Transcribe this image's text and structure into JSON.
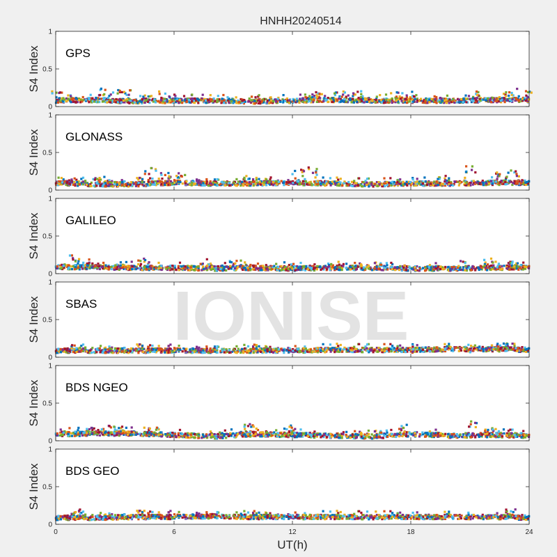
{
  "chart_data": {
    "type": "scatter",
    "title": "HNHH20240514",
    "xlabel": "UT(h)",
    "ylabel": "S4 Index",
    "xlim": [
      0,
      24
    ],
    "ylim": [
      0,
      1
    ],
    "x_ticks": [
      0,
      6,
      12,
      18,
      24
    ],
    "y_ticks": [
      0,
      0.5,
      1
    ],
    "y_tick_labels": [
      "0",
      "0.5",
      "1"
    ],
    "grid": false,
    "watermark": "IONISE",
    "series_colors": [
      "#0072BD",
      "#D95319",
      "#EDB120",
      "#7E2F8E",
      "#77AC30",
      "#4DBEEE",
      "#A2142F"
    ],
    "panels": [
      {
        "label": "GPS",
        "baseline": [
          [
            0,
            0.08
          ],
          [
            2,
            0.09
          ],
          [
            4,
            0.07
          ],
          [
            6,
            0.08
          ],
          [
            8,
            0.08
          ],
          [
            10,
            0.07
          ],
          [
            12,
            0.08
          ],
          [
            14,
            0.09
          ],
          [
            16,
            0.08
          ],
          [
            18,
            0.08
          ],
          [
            20,
            0.08
          ],
          [
            22,
            0.09
          ],
          [
            24,
            0.09
          ]
        ],
        "peaks": [
          [
            0.1,
            0.2
          ],
          [
            2.3,
            0.25
          ],
          [
            3.0,
            0.23
          ],
          [
            3.5,
            0.22
          ],
          [
            5.5,
            0.2
          ],
          [
            13.1,
            0.2
          ],
          [
            14.4,
            0.22
          ],
          [
            15.2,
            0.21
          ],
          [
            17.3,
            0.2
          ],
          [
            18.2,
            0.2
          ],
          [
            21.4,
            0.2
          ],
          [
            23.1,
            0.24
          ],
          [
            24.0,
            0.22
          ]
        ]
      },
      {
        "label": "GLONASS",
        "baseline": [
          [
            0,
            0.1
          ],
          [
            2,
            0.08
          ],
          [
            4,
            0.08
          ],
          [
            6,
            0.1
          ],
          [
            8,
            0.09
          ],
          [
            10,
            0.09
          ],
          [
            12,
            0.1
          ],
          [
            14,
            0.09
          ],
          [
            16,
            0.08
          ],
          [
            18,
            0.09
          ],
          [
            20,
            0.09
          ],
          [
            22,
            0.1
          ],
          [
            24,
            0.1
          ]
        ],
        "peaks": [
          [
            0.3,
            0.2
          ],
          [
            2.2,
            0.18
          ],
          [
            4.8,
            0.3
          ],
          [
            5.5,
            0.25
          ],
          [
            6.4,
            0.25
          ],
          [
            9.7,
            0.2
          ],
          [
            12.3,
            0.28
          ],
          [
            13.0,
            0.3
          ],
          [
            19.5,
            0.2
          ],
          [
            21.1,
            0.32
          ],
          [
            22.3,
            0.25
          ],
          [
            23.2,
            0.27
          ]
        ]
      },
      {
        "label": "GALILEO",
        "baseline": [
          [
            0,
            0.09
          ],
          [
            2,
            0.09
          ],
          [
            4,
            0.08
          ],
          [
            6,
            0.08
          ],
          [
            8,
            0.07
          ],
          [
            10,
            0.08
          ],
          [
            12,
            0.07
          ],
          [
            14,
            0.08
          ],
          [
            16,
            0.08
          ],
          [
            18,
            0.07
          ],
          [
            20,
            0.07
          ],
          [
            22,
            0.08
          ],
          [
            24,
            0.09
          ]
        ],
        "peaks": [
          [
            1.0,
            0.25
          ],
          [
            1.6,
            0.2
          ],
          [
            4.4,
            0.21
          ],
          [
            7.6,
            0.2
          ],
          [
            9.1,
            0.19
          ],
          [
            14.1,
            0.19
          ],
          [
            20.5,
            0.17
          ],
          [
            22.0,
            0.2
          ],
          [
            23.3,
            0.15
          ]
        ]
      },
      {
        "label": "SBAS",
        "baseline": [
          [
            0,
            0.09
          ],
          [
            2,
            0.09
          ],
          [
            4,
            0.09
          ],
          [
            6,
            0.09
          ],
          [
            8,
            0.09
          ],
          [
            10,
            0.09
          ],
          [
            12,
            0.09
          ],
          [
            14,
            0.1
          ],
          [
            16,
            0.1
          ],
          [
            18,
            0.1
          ],
          [
            20,
            0.11
          ],
          [
            22,
            0.11
          ],
          [
            24,
            0.1
          ]
        ],
        "peaks": [
          [
            1.0,
            0.16
          ],
          [
            18.2,
            0.16
          ],
          [
            21.3,
            0.16
          ],
          [
            22.3,
            0.18
          ],
          [
            23.1,
            0.19
          ]
        ]
      },
      {
        "label": "BDS NGEO",
        "baseline": [
          [
            0,
            0.09
          ],
          [
            2,
            0.1
          ],
          [
            4,
            0.1
          ],
          [
            6,
            0.08
          ],
          [
            8,
            0.06
          ],
          [
            10,
            0.09
          ],
          [
            12,
            0.08
          ],
          [
            14,
            0.07
          ],
          [
            16,
            0.06
          ],
          [
            18,
            0.09
          ],
          [
            20,
            0.07
          ],
          [
            22,
            0.08
          ],
          [
            24,
            0.07
          ]
        ],
        "peaks": [
          [
            1.8,
            0.2
          ],
          [
            2.7,
            0.2
          ],
          [
            3.2,
            0.2
          ],
          [
            4.9,
            0.18
          ],
          [
            9.8,
            0.22
          ],
          [
            12.0,
            0.21
          ],
          [
            17.6,
            0.22
          ],
          [
            21.1,
            0.28
          ],
          [
            21.9,
            0.17
          ]
        ]
      },
      {
        "label": "BDS GEO",
        "baseline": [
          [
            0,
            0.09
          ],
          [
            2,
            0.09
          ],
          [
            4,
            0.1
          ],
          [
            6,
            0.1
          ],
          [
            8,
            0.11
          ],
          [
            10,
            0.1
          ],
          [
            12,
            0.1
          ],
          [
            14,
            0.1
          ],
          [
            16,
            0.1
          ],
          [
            18,
            0.1
          ],
          [
            20,
            0.1
          ],
          [
            22,
            0.1
          ],
          [
            24,
            0.09
          ]
        ],
        "peaks": [
          [
            1.1,
            0.2
          ],
          [
            23.1,
            0.2
          ]
        ]
      }
    ]
  }
}
